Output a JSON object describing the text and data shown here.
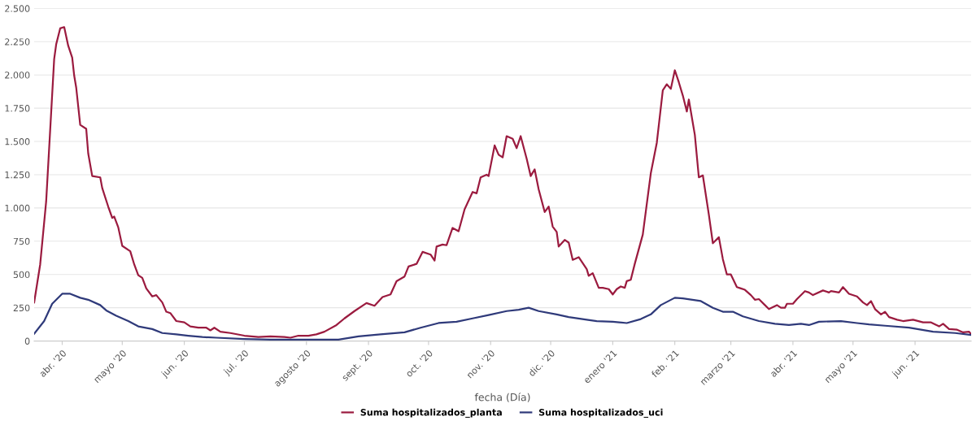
{
  "chart_data": {
    "type": "line",
    "xlabel": "fecha (Día)",
    "xlim": [
      "2020-03-18",
      "2021-06-29"
    ],
    "xticks": [
      {
        "value": "2020-04-01",
        "label": "abr. '20"
      },
      {
        "value": "2020-05-01",
        "label": "mayo '20"
      },
      {
        "value": "2020-06-01",
        "label": "jun. '20"
      },
      {
        "value": "2020-07-01",
        "label": "jul. '20"
      },
      {
        "value": "2020-08-01",
        "label": "agosto '20"
      },
      {
        "value": "2020-09-01",
        "label": "sept. '20"
      },
      {
        "value": "2020-10-01",
        "label": "oct. '20"
      },
      {
        "value": "2020-11-01",
        "label": "nov. '20"
      },
      {
        "value": "2020-12-01",
        "label": "dic. '20"
      },
      {
        "value": "2021-01-01",
        "label": "enero '21"
      },
      {
        "value": "2021-02-01",
        "label": "feb. '21"
      },
      {
        "value": "2021-03-01",
        "label": "marzo '21"
      },
      {
        "value": "2021-04-01",
        "label": "abr. '21"
      },
      {
        "value": "2021-05-01",
        "label": "mayo '21"
      },
      {
        "value": "2021-06-01",
        "label": "jun. '21"
      }
    ],
    "ylim": [
      0,
      2500
    ],
    "yticks": [
      0,
      250,
      500,
      750,
      {
        "value": 1000,
        "label": "1.000"
      },
      {
        "value": 1250,
        "label": "1.250"
      },
      {
        "value": 1500,
        "label": "1.500"
      },
      {
        "value": 1750,
        "label": "1.750"
      },
      {
        "value": 2000,
        "label": "2.000"
      },
      {
        "value": 2250,
        "label": "2.250"
      },
      {
        "value": 2500,
        "label": "2.500"
      }
    ],
    "grid": "y",
    "legend": "bottom",
    "series": [
      {
        "name": "Suma hospitalizados_planta",
        "color": "#9b1b3f",
        "x": [
          "2020-03-18",
          "2020-03-21",
          "2020-03-24",
          "2020-03-28",
          "2020-03-29",
          "2020-03-31",
          "2020-04-02",
          "2020-04-04",
          "2020-04-06",
          "2020-04-07",
          "2020-04-08",
          "2020-04-10",
          "2020-04-13",
          "2020-04-14",
          "2020-04-16",
          "2020-04-20",
          "2020-04-21",
          "2020-04-24",
          "2020-04-26",
          "2020-04-27",
          "2020-04-29",
          "2020-05-01",
          "2020-05-05",
          "2020-05-07",
          "2020-05-09",
          "2020-05-11",
          "2020-05-13",
          "2020-05-16",
          "2020-05-18",
          "2020-05-21",
          "2020-05-23",
          "2020-05-25",
          "2020-05-28",
          "2020-06-01",
          "2020-06-04",
          "2020-06-08",
          "2020-06-12",
          "2020-06-14",
          "2020-06-16",
          "2020-06-19",
          "2020-06-24",
          "2020-07-01",
          "2020-07-08",
          "2020-07-14",
          "2020-07-21",
          "2020-07-24",
          "2020-07-28",
          "2020-08-02",
          "2020-08-06",
          "2020-08-10",
          "2020-08-16",
          "2020-08-20",
          "2020-08-25",
          "2020-08-31",
          "2020-09-04",
          "2020-09-08",
          "2020-09-12",
          "2020-09-15",
          "2020-09-19",
          "2020-09-21",
          "2020-09-25",
          "2020-09-28",
          "2020-10-02",
          "2020-10-04",
          "2020-10-05",
          "2020-10-08",
          "2020-10-10",
          "2020-10-13",
          "2020-10-16",
          "2020-10-19",
          "2020-10-23",
          "2020-10-25",
          "2020-10-27",
          "2020-10-30",
          "2020-10-31",
          "2020-11-03",
          "2020-11-05",
          "2020-11-07",
          "2020-11-09",
          "2020-11-12",
          "2020-11-14",
          "2020-11-16",
          "2020-11-19",
          "2020-11-21",
          "2020-11-23",
          "2020-11-25",
          "2020-11-28",
          "2020-11-30",
          "2020-12-02",
          "2020-12-04",
          "2020-12-05",
          "2020-12-08",
          "2020-12-10",
          "2020-12-12",
          "2020-12-15",
          "2020-12-19",
          "2020-12-20",
          "2020-12-22",
          "2020-12-25",
          "2020-12-27",
          "2020-12-30",
          "2021-01-01",
          "2021-01-03",
          "2021-01-05",
          "2021-01-07",
          "2021-01-08",
          "2021-01-10",
          "2021-01-12",
          "2021-01-16",
          "2021-01-20",
          "2021-01-23",
          "2021-01-26",
          "2021-01-28",
          "2021-01-30",
          "2021-02-01",
          "2021-02-03",
          "2021-02-05",
          "2021-02-07",
          "2021-02-08",
          "2021-02-11",
          "2021-02-13",
          "2021-02-15",
          "2021-02-18",
          "2021-02-20",
          "2021-02-23",
          "2021-02-25",
          "2021-02-27",
          "2021-03-01",
          "2021-03-04",
          "2021-03-06",
          "2021-03-08",
          "2021-03-11",
          "2021-03-13",
          "2021-03-15",
          "2021-03-18",
          "2021-03-20",
          "2021-03-24",
          "2021-03-26",
          "2021-03-28",
          "2021-03-29",
          "2021-04-01",
          "2021-04-03",
          "2021-04-07",
          "2021-04-09",
          "2021-04-11",
          "2021-04-16",
          "2021-04-19",
          "2021-04-20",
          "2021-04-24",
          "2021-04-26",
          "2021-04-29",
          "2021-05-03",
          "2021-05-06",
          "2021-05-08",
          "2021-05-10",
          "2021-05-12",
          "2021-05-15",
          "2021-05-17",
          "2021-05-19",
          "2021-05-23",
          "2021-05-26",
          "2021-05-31",
          "2021-06-05",
          "2021-06-09",
          "2021-06-13",
          "2021-06-15",
          "2021-06-18",
          "2021-06-22",
          "2021-06-25",
          "2021-06-28",
          "2021-06-29"
        ],
        "values": [
          290,
          575,
          1050,
          2120,
          2230,
          2350,
          2360,
          2220,
          2130,
          1995,
          1905,
          1625,
          1595,
          1410,
          1240,
          1230,
          1150,
          1010,
          925,
          935,
          855,
          715,
          675,
          575,
          495,
          475,
          395,
          335,
          345,
          290,
          220,
          210,
          150,
          140,
          110,
          100,
          100,
          80,
          100,
          70,
          60,
          40,
          30,
          35,
          30,
          25,
          40,
          40,
          50,
          70,
          120,
          170,
          225,
          285,
          265,
          330,
          350,
          450,
          485,
          560,
          580,
          670,
          650,
          605,
          710,
          725,
          720,
          850,
          825,
          990,
          1120,
          1110,
          1230,
          1250,
          1240,
          1470,
          1400,
          1380,
          1540,
          1520,
          1450,
          1540,
          1370,
          1240,
          1290,
          1140,
          970,
          1010,
          860,
          820,
          710,
          760,
          740,
          610,
          630,
          540,
          490,
          510,
          400,
          400,
          390,
          350,
          390,
          410,
          400,
          450,
          460,
          580,
          800,
          1260,
          1490,
          1885,
          1930,
          1895,
          2035,
          1945,
          1845,
          1725,
          1815,
          1550,
          1230,
          1245,
          950,
          735,
          780,
          615,
          500,
          500,
          405,
          395,
          385,
          345,
          310,
          315,
          270,
          240,
          270,
          250,
          250,
          280,
          280,
          315,
          375,
          365,
          345,
          380,
          365,
          375,
          365,
          405,
          355,
          335,
          290,
          270,
          300,
          240,
          200,
          220,
          180,
          160,
          150,
          160,
          140,
          140,
          110,
          130,
          90,
          85,
          65,
          70,
          50
        ]
      },
      {
        "name": "Suma hospitalizados_uci",
        "color": "#2f3a7a",
        "x": [
          "2020-03-18",
          "2020-03-23",
          "2020-03-27",
          "2020-04-01",
          "2020-04-05",
          "2020-04-10",
          "2020-04-14",
          "2020-04-20",
          "2020-04-23",
          "2020-04-28",
          "2020-05-04",
          "2020-05-09",
          "2020-05-16",
          "2020-05-21",
          "2020-05-28",
          "2020-06-03",
          "2020-06-10",
          "2020-06-17",
          "2020-07-01",
          "2020-07-14",
          "2020-07-28",
          "2020-08-10",
          "2020-08-17",
          "2020-08-27",
          "2020-09-07",
          "2020-09-19",
          "2020-09-27",
          "2020-10-06",
          "2020-10-15",
          "2020-10-23",
          "2020-10-31",
          "2020-11-09",
          "2020-11-15",
          "2020-11-20",
          "2020-11-25",
          "2020-12-04",
          "2020-12-10",
          "2020-12-19",
          "2020-12-24",
          "2021-01-01",
          "2021-01-08",
          "2021-01-15",
          "2021-01-20",
          "2021-01-25",
          "2021-02-01",
          "2021-02-05",
          "2021-02-14",
          "2021-02-20",
          "2021-02-25",
          "2021-03-02",
          "2021-03-07",
          "2021-03-15",
          "2021-03-23",
          "2021-03-30",
          "2021-04-05",
          "2021-04-09",
          "2021-04-14",
          "2021-04-25",
          "2021-05-03",
          "2021-05-09",
          "2021-05-17",
          "2021-05-29",
          "2021-06-10",
          "2021-06-21",
          "2021-06-29"
        ],
        "values": [
          55,
          150,
          280,
          355,
          355,
          325,
          310,
          270,
          230,
          190,
          150,
          110,
          90,
          60,
          50,
          40,
          30,
          25,
          15,
          10,
          10,
          10,
          10,
          35,
          50,
          65,
          100,
          135,
          145,
          170,
          195,
          225,
          235,
          250,
          225,
          200,
          180,
          160,
          150,
          145,
          135,
          165,
          200,
          270,
          325,
          320,
          300,
          250,
          220,
          220,
          185,
          150,
          130,
          120,
          130,
          120,
          145,
          150,
          135,
          125,
          115,
          100,
          70,
          60,
          45
        ]
      }
    ]
  }
}
